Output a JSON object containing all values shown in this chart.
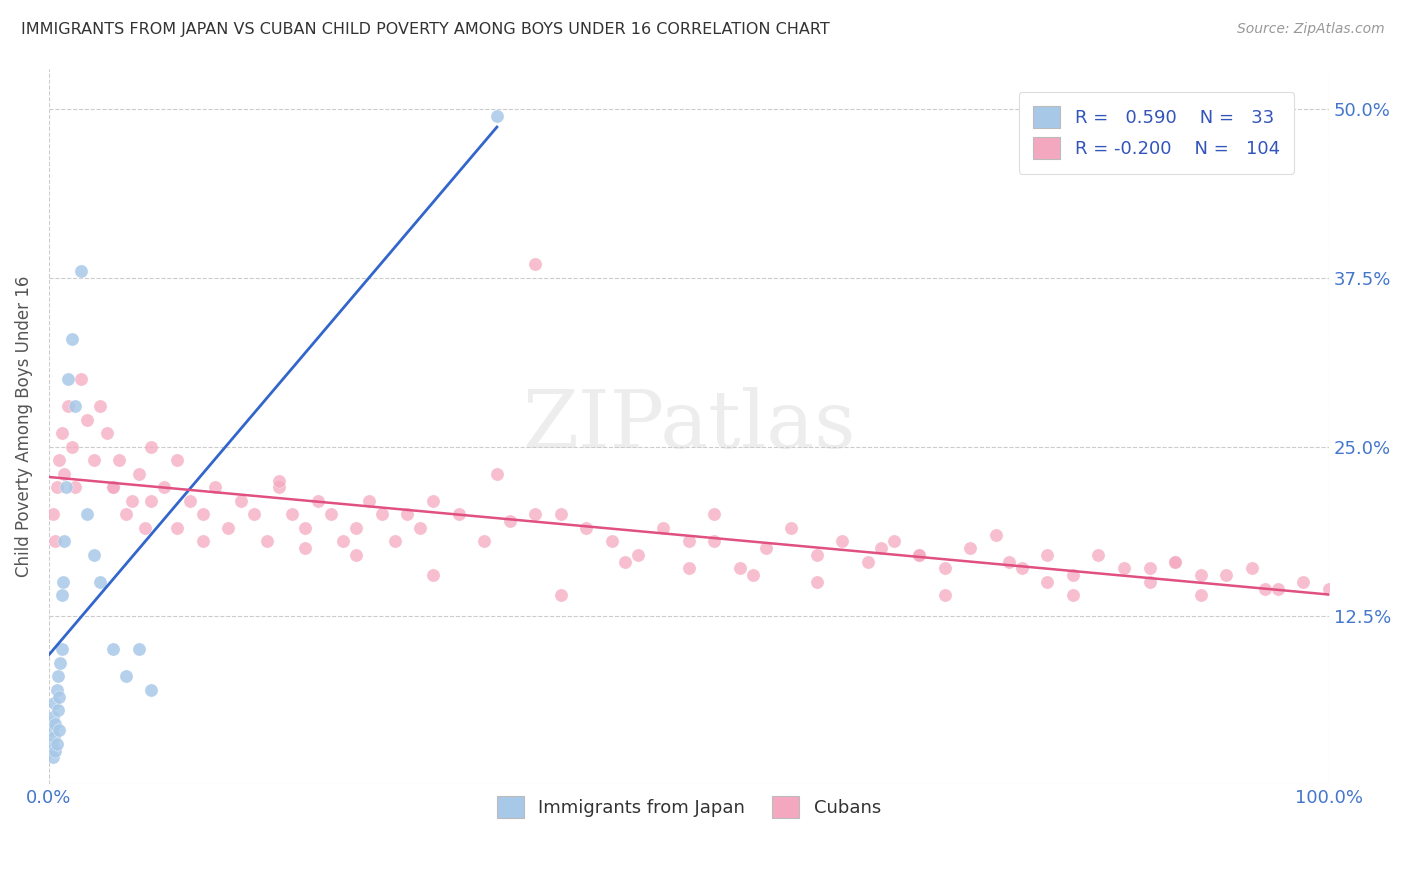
{
  "title": "IMMIGRANTS FROM JAPAN VS CUBAN CHILD POVERTY AMONG BOYS UNDER 16 CORRELATION CHART",
  "source": "Source: ZipAtlas.com",
  "ylabel": "Child Poverty Among Boys Under 16",
  "blue_R": 0.59,
  "blue_N": 33,
  "pink_R": -0.2,
  "pink_N": 104,
  "blue_color": "#a8c8e8",
  "pink_color": "#f4a8c0",
  "blue_line_color": "#3366cc",
  "pink_line_color": "#e05080",
  "blue_scatter_x": [
    0.1,
    0.2,
    0.2,
    0.3,
    0.3,
    0.4,
    0.4,
    0.5,
    0.5,
    0.6,
    0.6,
    0.7,
    0.7,
    0.8,
    0.8,
    0.9,
    1.0,
    1.0,
    1.1,
    1.2,
    1.3,
    1.5,
    1.8,
    2.0,
    2.5,
    3.0,
    3.5,
    4.0,
    5.0,
    6.0,
    7.0,
    8.0,
    35.0
  ],
  "blue_scatter_y": [
    2.5,
    3.0,
    4.0,
    2.0,
    5.0,
    3.5,
    6.0,
    2.5,
    4.5,
    3.0,
    7.0,
    5.5,
    8.0,
    4.0,
    6.5,
    9.0,
    10.0,
    14.0,
    15.0,
    18.0,
    22.0,
    30.0,
    33.0,
    28.0,
    38.0,
    20.0,
    17.0,
    15.0,
    10.0,
    8.0,
    10.0,
    7.0,
    49.5
  ],
  "pink_scatter_x": [
    0.3,
    0.5,
    0.6,
    0.8,
    1.0,
    1.2,
    1.5,
    1.8,
    2.0,
    2.5,
    3.0,
    3.5,
    4.0,
    4.5,
    5.0,
    5.5,
    6.0,
    6.5,
    7.0,
    7.5,
    8.0,
    9.0,
    10.0,
    11.0,
    12.0,
    13.0,
    14.0,
    15.0,
    16.0,
    17.0,
    18.0,
    19.0,
    20.0,
    21.0,
    22.0,
    23.0,
    24.0,
    25.0,
    26.0,
    27.0,
    28.0,
    29.0,
    30.0,
    32.0,
    34.0,
    36.0,
    38.0,
    40.0,
    42.0,
    44.0,
    46.0,
    48.0,
    50.0,
    52.0,
    54.0,
    56.0,
    58.0,
    60.0,
    62.0,
    64.0,
    66.0,
    68.0,
    70.0,
    72.0,
    74.0,
    76.0,
    78.0,
    80.0,
    82.0,
    84.0,
    86.0,
    88.0,
    90.0,
    92.0,
    94.0,
    96.0,
    98.0,
    100.0,
    5.0,
    8.0,
    12.0,
    18.0,
    24.0,
    30.0,
    38.0,
    45.0,
    52.0,
    60.0,
    68.0,
    75.0,
    80.0,
    86.0,
    90.0,
    95.0,
    35.0,
    50.0,
    65.0,
    78.0,
    88.0,
    10.0,
    20.0,
    40.0,
    55.0,
    70.0
  ],
  "pink_scatter_y": [
    20.0,
    18.0,
    22.0,
    24.0,
    26.0,
    23.0,
    28.0,
    25.0,
    22.0,
    30.0,
    27.0,
    24.0,
    28.0,
    26.0,
    22.0,
    24.0,
    20.0,
    21.0,
    23.0,
    19.0,
    25.0,
    22.0,
    24.0,
    21.0,
    20.0,
    22.0,
    19.0,
    21.0,
    20.0,
    18.0,
    22.0,
    20.0,
    19.0,
    21.0,
    20.0,
    18.0,
    19.0,
    21.0,
    20.0,
    18.0,
    20.0,
    19.0,
    21.0,
    20.0,
    18.0,
    19.5,
    38.5,
    20.0,
    19.0,
    18.0,
    17.0,
    19.0,
    18.0,
    20.0,
    16.0,
    17.5,
    19.0,
    17.0,
    18.0,
    16.5,
    18.0,
    17.0,
    16.0,
    17.5,
    18.5,
    16.0,
    17.0,
    15.5,
    17.0,
    16.0,
    15.0,
    16.5,
    14.0,
    15.5,
    16.0,
    14.5,
    15.0,
    14.5,
    22.0,
    21.0,
    18.0,
    22.5,
    17.0,
    15.5,
    20.0,
    16.5,
    18.0,
    15.0,
    17.0,
    16.5,
    14.0,
    16.0,
    15.5,
    14.5,
    23.0,
    16.0,
    17.5,
    15.0,
    16.5,
    19.0,
    17.5,
    14.0,
    15.5,
    14.0
  ],
  "ytick_vals": [
    0,
    12.5,
    25.0,
    37.5,
    50.0
  ],
  "ytick_labels": [
    "",
    "12.5%",
    "25.0%",
    "37.5%",
    "50.0%"
  ],
  "xtick_vals": [
    0,
    25,
    50,
    75,
    100
  ],
  "xtick_labels": [
    "0.0%",
    "",
    "",
    "",
    "100.0%"
  ]
}
